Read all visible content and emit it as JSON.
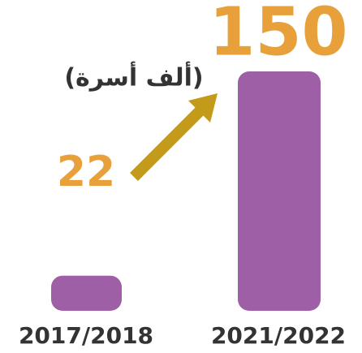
{
  "chart_data": {
    "type": "bar",
    "unit_label": "(ألف أسرة)",
    "categories": [
      "2017/2018",
      "2021/2022"
    ],
    "values": [
      22,
      150
    ],
    "color": "#9e5fa6",
    "value_color": "#e8a13a",
    "arrow_color": "#c49a1a"
  }
}
